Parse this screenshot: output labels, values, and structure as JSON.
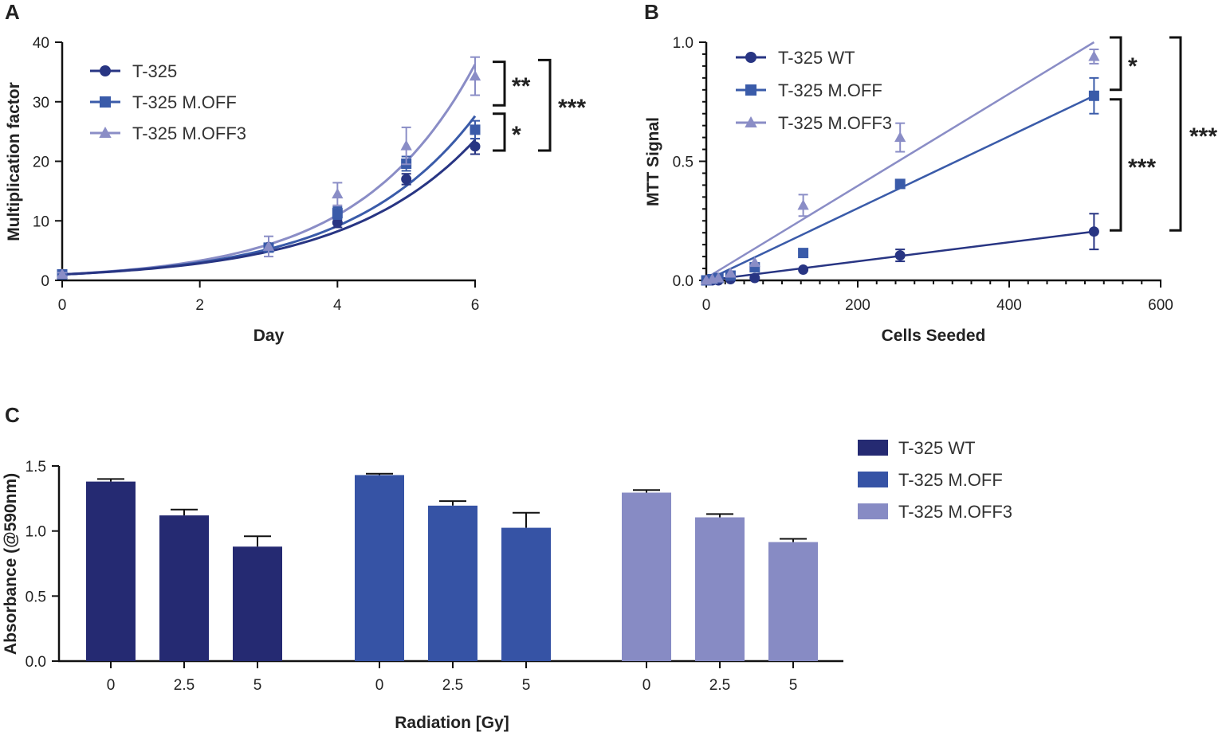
{
  "chart_data": [
    {
      "panel": "A",
      "type": "scatter",
      "xlabel": "Day",
      "ylabel": "Multiplication factor",
      "xlim": [
        0,
        6
      ],
      "ylim": [
        0,
        40
      ],
      "xticks": [
        "0",
        "2",
        "4",
        "6"
      ],
      "yticks": [
        "0",
        "10",
        "20",
        "30",
        "40"
      ],
      "fit": "exponential",
      "colors": [
        "#283583",
        "#3a5ba9",
        "#8a8dc6"
      ],
      "x": [
        0,
        3,
        4,
        5,
        6
      ],
      "series": [
        {
          "name": "T-325",
          "marker": "circle",
          "color": "#283583",
          "values": [
            1.0,
            5.6,
            9.7,
            17.0,
            22.5
          ],
          "errors": [
            0.3,
            0.5,
            0.8,
            0.9,
            1.3
          ],
          "fit_end": 23.6
        },
        {
          "name": "T-325 M.OFF",
          "marker": "square",
          "color": "#3a5ba9",
          "values": [
            1.0,
            5.5,
            11.3,
            19.6,
            25.3
          ],
          "errors": [
            0.3,
            0.5,
            1.0,
            1.2,
            1.5
          ],
          "fit_end": 27.6
        },
        {
          "name": "T-325 M.OFF3",
          "marker": "triangle",
          "color": "#8a8dc6",
          "values": [
            1.0,
            5.7,
            14.5,
            22.6,
            34.3
          ],
          "errors": [
            0.3,
            1.7,
            1.9,
            3.1,
            3.2
          ],
          "fit_end": 36.3
        }
      ],
      "significance": [
        {
          "label": "**",
          "from": 36.7,
          "to": 29.4
        },
        {
          "label": "*",
          "from": 28.0,
          "to": 21.8
        },
        {
          "label": "***",
          "from": 37.0,
          "to": 21.8
        }
      ]
    },
    {
      "panel": "B",
      "type": "scatter",
      "xlabel": "Cells Seeded",
      "ylabel": "MTT Signal",
      "xlim": [
        0,
        600
      ],
      "ylim": [
        0,
        1.0
      ],
      "xticks": [
        "0",
        "200",
        "400",
        "600"
      ],
      "yticks": [
        "0.0",
        "0.5",
        "1.0"
      ],
      "fit": "linear",
      "x": [
        0,
        8,
        16,
        32,
        64,
        128,
        256,
        512
      ],
      "series": [
        {
          "name": "T-325 WT",
          "marker": "circle",
          "color": "#283583",
          "values": [
            0.0,
            0.0,
            0.0,
            0.005,
            0.01,
            0.045,
            0.105,
            0.205
          ],
          "errors": [
            0,
            0,
            0,
            0,
            0,
            0,
            0.025,
            0.075
          ],
          "fit_start": 0.0,
          "fit_end": 0.205
        },
        {
          "name": "T-325 M.OFF",
          "marker": "square",
          "color": "#3a5ba9",
          "values": [
            0.0,
            0.005,
            0.01,
            0.02,
            0.055,
            0.115,
            0.405,
            0.775
          ],
          "errors": [
            0,
            0,
            0,
            0,
            0,
            0.015,
            0.015,
            0.075
          ],
          "fit_start": 0.0,
          "fit_end": 0.775
        },
        {
          "name": "T-325 M.OFF3",
          "marker": "triangle",
          "color": "#8a8dc6",
          "values": [
            0.0,
            0.005,
            0.01,
            0.03,
            0.075,
            0.315,
            0.6,
            0.94
          ],
          "errors": [
            0,
            0,
            0,
            0,
            0,
            0.045,
            0.06,
            0.03
          ],
          "fit_start": 0.01,
          "fit_end": 1.0
        }
      ],
      "significance": [
        {
          "label": "*",
          "from": 1.02,
          "to": 0.8
        },
        {
          "label": "***",
          "from": 0.76,
          "to": 0.21
        },
        {
          "label": "***",
          "from": 1.02,
          "to": 0.21
        }
      ]
    },
    {
      "panel": "C",
      "type": "bar",
      "xlabel": "Radiation [Gy]",
      "ylabel": "Absorbance (@590nm)",
      "ylim": [
        0,
        1.5
      ],
      "yticks": [
        "0.0",
        "0.5",
        "1.0",
        "1.5"
      ],
      "categories": [
        "0",
        "2.5",
        "5"
      ],
      "series": [
        {
          "name": "T-325 WT",
          "color": "#252a72",
          "values": [
            1.38,
            1.12,
            0.88
          ],
          "errors": [
            0.02,
            0.045,
            0.08
          ]
        },
        {
          "name": "T-325 M.OFF",
          "color": "#3653a5",
          "values": [
            1.43,
            1.195,
            1.025
          ],
          "errors": [
            0.01,
            0.035,
            0.115
          ]
        },
        {
          "name": "T-325 M.OFF3",
          "color": "#878bc4",
          "values": [
            1.295,
            1.105,
            0.915
          ],
          "errors": [
            0.02,
            0.025,
            0.025
          ]
        }
      ]
    }
  ]
}
